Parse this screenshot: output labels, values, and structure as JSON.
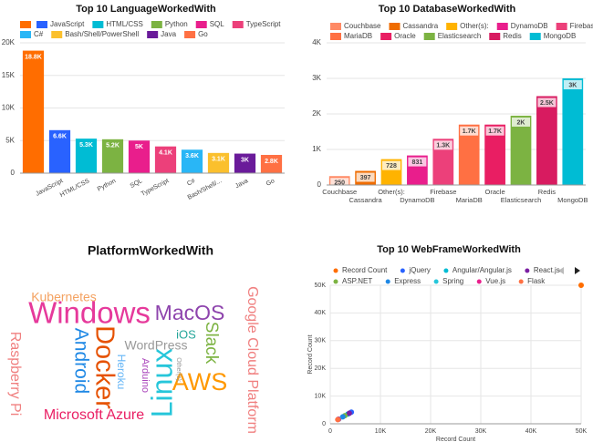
{
  "chart_data": [
    {
      "type": "bar",
      "title": "Top 10 LanguageWorkedWith",
      "categories": [
        null,
        "JavaScript",
        "HTML/CSS",
        "Python",
        "SQL",
        "TypeScript",
        "C#",
        "Bash/Shell/...",
        "Java",
        "Go"
      ],
      "legend": [
        null,
        "JavaScript",
        "HTML/CSS",
        "Python",
        "SQL",
        "TypeScript",
        "C#",
        "Bash/Shell/PowerShell",
        "Java",
        "Go"
      ],
      "colors": [
        "#ff6d00",
        "#2962ff",
        "#00bcd4",
        "#7cb342",
        "#e91e8c",
        "#ec407a",
        "#29b6f6",
        "#fbc02d",
        "#6a1b9a",
        "#ff7043"
      ],
      "values": [
        18800,
        6600,
        5300,
        5200,
        5000,
        4100,
        3600,
        3100,
        3000,
        2800
      ],
      "value_labels": [
        "18.8K",
        "6.6K",
        "5.3K",
        "5.2K",
        "5K",
        "4.1K",
        "3.6K",
        "3.1K",
        "3K",
        "2.8K"
      ],
      "ylim": [
        0,
        20000
      ],
      "yticks": [
        0,
        {
          "value": 5000,
          "label": "5K"
        },
        {
          "value": 10000,
          "label": "10K"
        },
        {
          "value": 15000,
          "label": "15K"
        },
        {
          "value": 20000,
          "label": "20K"
        }
      ],
      "grid": true
    },
    {
      "type": "bar",
      "title": "Top 10 DatabaseWorkedWith",
      "categories": [
        "Couchbase",
        "Cassandra",
        "Other(s):",
        "DynamoDB",
        "Firebase",
        "MariaDB",
        "Oracle",
        "Elasticsearch",
        "Redis",
        "MongoDB"
      ],
      "legend": [
        "Couchbase",
        "Cassandra",
        "Other(s):",
        "DynamoDB",
        "Firebase",
        "MariaDB",
        "Oracle",
        "Elasticsearch",
        "Redis",
        "MongoDB"
      ],
      "colors": [
        "#ff8a65",
        "#ef6c00",
        "#ffb300",
        "#e91e8c",
        "#ec407a",
        "#ff7043",
        "#e91e63",
        "#7cb342",
        "#d81b60",
        "#00bcd4"
      ],
      "values": [
        250,
        397,
        728,
        831,
        1300,
        1700,
        1700,
        1950,
        2500,
        3000
      ],
      "value_labels": [
        "250",
        "397",
        "728",
        "831",
        "1.3K",
        "1.7K",
        "1.7K",
        "2K",
        "2.5K",
        "3K"
      ],
      "ylim": [
        0,
        4000
      ],
      "yticks": [
        0,
        {
          "value": 1000,
          "label": "1K"
        },
        {
          "value": 2000,
          "label": "2K"
        },
        {
          "value": 3000,
          "label": "3K"
        },
        {
          "value": 4000,
          "label": "4K"
        }
      ],
      "grid": true
    },
    {
      "type": "wordcloud",
      "title": "PlatformWorkedWith",
      "words": [
        "Kubernetes",
        "Windows",
        "MacOS",
        "Google Cloud Platform",
        "Linux",
        "Docker",
        "Android",
        "WordPress",
        "iOS",
        "Slack",
        "Heroku",
        "Arduino",
        "AWS",
        "Other(s):",
        "Raspberry Pi",
        "Microsoft Azure"
      ]
    },
    {
      "type": "scatter",
      "title": "Top 10 WebFrameWorkedWith",
      "x_label": "Record Count",
      "y_label": "Record Count",
      "series": [
        {
          "name": "Record Count",
          "color": "#ff6d00",
          "x": [
            50000
          ],
          "values": [
            50000
          ]
        },
        {
          "name": "jQuery",
          "color": "#2962ff",
          "x": [
            4200
          ],
          "values": [
            4200
          ]
        },
        {
          "name": "Angular/Angular.js",
          "color": "#00bcd4",
          "x": [
            3500
          ],
          "values": [
            3500
          ]
        },
        {
          "name": "React.js",
          "color": "#7b1fa2",
          "x": [
            3800
          ],
          "values": [
            3800
          ]
        },
        {
          "name": "ASP.NET",
          "color": "#7cb342",
          "x": [
            2900
          ],
          "values": [
            2900
          ]
        },
        {
          "name": "Express",
          "color": "#1e88e5",
          "x": [
            2500
          ],
          "values": [
            2500
          ]
        },
        {
          "name": "Spring",
          "color": "#26c6da",
          "x": [
            1700
          ],
          "values": [
            1700
          ]
        },
        {
          "name": "Vue.js",
          "color": "#e91e8c",
          "x": [
            1600
          ],
          "values": [
            1600
          ]
        },
        {
          "name": "Flask",
          "color": "#ff7043",
          "x": [
            1500
          ],
          "values": [
            1500
          ]
        }
      ],
      "xlim": [
        0,
        50000
      ],
      "ylim": [
        0,
        50000
      ],
      "xticks": [
        0,
        {
          "value": 10000,
          "label": "10K"
        },
        {
          "value": 20000,
          "label": "20K"
        },
        {
          "value": 30000,
          "label": "30K"
        },
        {
          "value": 40000,
          "label": "40K"
        },
        {
          "value": 50000,
          "label": "50K"
        }
      ],
      "yticks": [
        0,
        {
          "value": 10000,
          "label": "10K"
        },
        {
          "value": 20000,
          "label": "20K"
        },
        {
          "value": 30000,
          "label": "30K"
        },
        {
          "value": 40000,
          "label": "40K"
        },
        {
          "value": 50000,
          "label": "50K"
        }
      ],
      "grid": true
    }
  ]
}
